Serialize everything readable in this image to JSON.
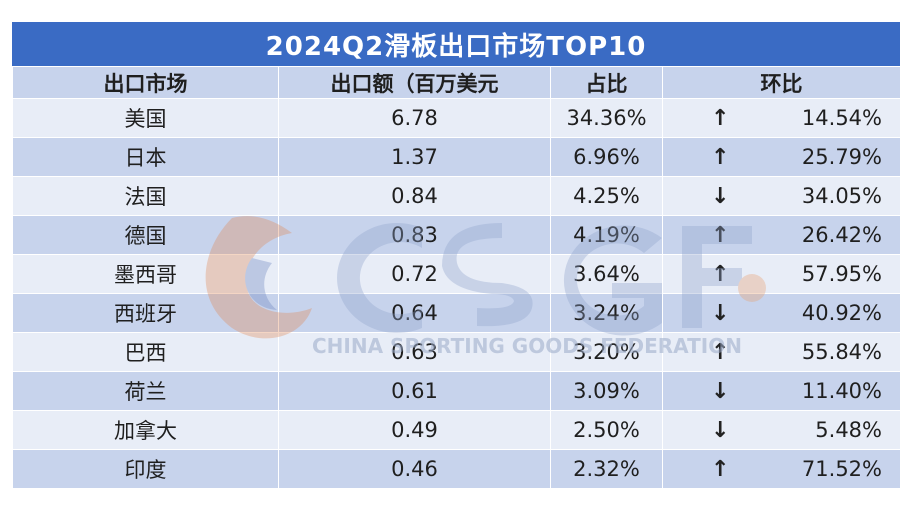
{
  "title": "2024Q2滑板出口市场TOP10",
  "headers": {
    "market": "出口市场",
    "value": "出口额（百万美元",
    "share": "占比",
    "mom": "环比"
  },
  "rows": [
    {
      "market": "美国",
      "value": "6.78",
      "share": "34.36%",
      "mom_dir": "up",
      "mom_arrow": "↑",
      "mom": "14.54%"
    },
    {
      "market": "日本",
      "value": "1.37",
      "share": "6.96%",
      "mom_dir": "up",
      "mom_arrow": "↑",
      "mom": "25.79%"
    },
    {
      "market": "法国",
      "value": "0.84",
      "share": "4.25%",
      "mom_dir": "down",
      "mom_arrow": "↓",
      "mom": "34.05%"
    },
    {
      "market": "德国",
      "value": "0.83",
      "share": "4.19%",
      "mom_dir": "up",
      "mom_arrow": "↑",
      "mom": "26.42%"
    },
    {
      "market": "墨西哥",
      "value": "0.72",
      "share": "3.64%",
      "mom_dir": "up",
      "mom_arrow": "↑",
      "mom": "57.95%"
    },
    {
      "market": "西班牙",
      "value": "0.64",
      "share": "3.24%",
      "mom_dir": "down",
      "mom_arrow": "↓",
      "mom": "40.92%"
    },
    {
      "market": "巴西",
      "value": "0.63",
      "share": "3.20%",
      "mom_dir": "up",
      "mom_arrow": "↑",
      "mom": "55.84%"
    },
    {
      "market": "荷兰",
      "value": "0.61",
      "share": "3.09%",
      "mom_dir": "down",
      "mom_arrow": "↓",
      "mom": "11.40%"
    },
    {
      "market": "加拿大",
      "value": "0.49",
      "share": "2.50%",
      "mom_dir": "down",
      "mom_arrow": "↓",
      "mom": "5.48%"
    },
    {
      "market": "印度",
      "value": "0.46",
      "share": "2.32%",
      "mom_dir": "up",
      "mom_arrow": "↑",
      "mom": "71.52%"
    }
  ],
  "watermark": {
    "logo_text": "CSGF",
    "caption": "CHINA SPORTING GOODS FEDERATION"
  },
  "colors": {
    "title_bg": "#3a6bc4",
    "row_light": "#e8edf7",
    "row_dark": "#c7d3ec"
  }
}
